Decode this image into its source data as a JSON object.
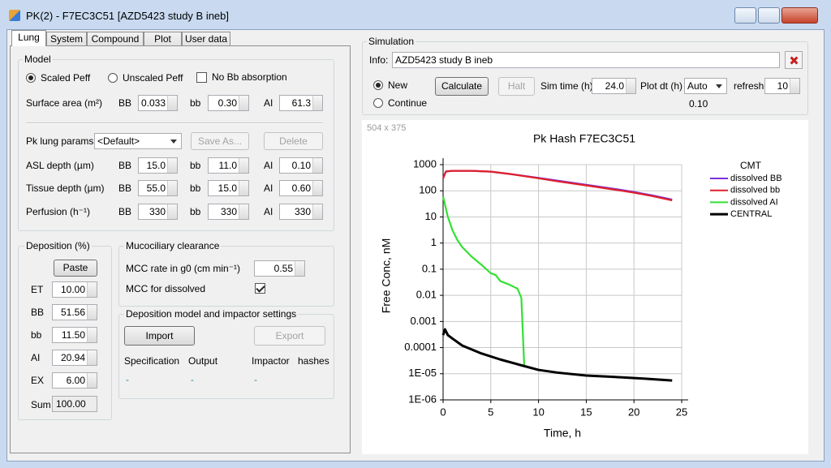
{
  "window": {
    "title": "PK(2) - F7EC3C51 [AZD5423 study B ineb]"
  },
  "tabs": [
    "Lung",
    "System",
    "Compound",
    "Plot",
    "User data"
  ],
  "model": {
    "title": "Model",
    "options": [
      {
        "label": "Scaled Peff",
        "checked": true
      },
      {
        "label": "Unscaled Peff",
        "checked": false
      }
    ],
    "no_bb_absorption": {
      "label": "No Bb absorption",
      "checked": false
    },
    "surface_area": {
      "label": "Surface area (m²)",
      "fields": [
        {
          "label": "BB",
          "value": "0.033"
        },
        {
          "label": "bb",
          "value": "0.30"
        },
        {
          "label": "AI",
          "value": "61.3"
        }
      ]
    },
    "pk_lung_params": {
      "label": "Pk lung params",
      "selected": "<Default>",
      "save_as": "Save As...",
      "delete": "Delete"
    },
    "rows": [
      {
        "label": "ASL depth (µm)",
        "fields": [
          {
            "label": "BB",
            "value": "15.0"
          },
          {
            "label": "bb",
            "value": "11.0"
          },
          {
            "label": "AI",
            "value": "0.10"
          }
        ]
      },
      {
        "label": "Tissue depth (µm)",
        "fields": [
          {
            "label": "BB",
            "value": "55.0"
          },
          {
            "label": "bb",
            "value": "15.0"
          },
          {
            "label": "AI",
            "value": "0.60"
          }
        ]
      },
      {
        "label": "Perfusion (h⁻¹)",
        "fields": [
          {
            "label": "BB",
            "value": "330"
          },
          {
            "label": "bb",
            "value": "330"
          },
          {
            "label": "AI",
            "value": "330"
          }
        ]
      }
    ]
  },
  "deposition": {
    "title": "Deposition (%)",
    "paste": "Paste",
    "rows": [
      {
        "label": "ET",
        "value": "10.00"
      },
      {
        "label": "BB",
        "value": "51.56"
      },
      {
        "label": "bb",
        "value": "11.50"
      },
      {
        "label": "AI",
        "value": "20.94"
      },
      {
        "label": "EX",
        "value": "6.00"
      }
    ],
    "sum": {
      "label": "Sum",
      "value": "100.00"
    }
  },
  "mcc": {
    "title": "Mucociliary clearance",
    "rate": {
      "label": "MCC rate in g0 (cm min⁻¹)",
      "value": "0.55"
    },
    "dissolved": {
      "label": "MCC for dissolved",
      "checked": true
    }
  },
  "impactor": {
    "title": "Deposition model and impactor settings",
    "import": "Import",
    "export": "Export",
    "headers": [
      "Specification",
      "Output",
      "Impactor",
      "hashes"
    ],
    "values": [
      "-",
      "-",
      "-"
    ]
  },
  "simulation": {
    "title": "Simulation",
    "info_label": "Info:",
    "info": "AZD5423 study B ineb",
    "modes": [
      {
        "label": "New",
        "checked": true
      },
      {
        "label": "Continue",
        "checked": false
      }
    ],
    "calculate": "Calculate",
    "halt": "Halt",
    "sim_time": {
      "label": "Sim time (h)",
      "value": "24.0"
    },
    "plot_dt": {
      "label": "Plot dt (h)",
      "value": "Auto",
      "actual": "0.10"
    },
    "refresh": {
      "label": "refresh",
      "value": "10"
    }
  },
  "chart_panel": {
    "size_label": "504 x 375"
  },
  "chart_data": {
    "type": "line",
    "title": "Pk Hash F7EC3C51",
    "x_label": "Time, h",
    "y_label": "Free Conc, nM",
    "xlim": [
      0,
      25
    ],
    "xticks": [
      0,
      5,
      10,
      15,
      20,
      25
    ],
    "ylim": [
      1e-06,
      1000
    ],
    "yscale": "log",
    "yticks": [
      1000,
      100,
      10,
      1,
      0.1,
      0.01,
      0.001,
      0.0001,
      {
        "value": 1e-05,
        "label": "1E-05"
      },
      {
        "value": 1e-06,
        "label": "1E-06"
      }
    ],
    "grid": true,
    "legend_title": "CMT",
    "legend_position": "right",
    "series": [
      {
        "name": "dissolved BB",
        "color": "#7a2fe0",
        "x": [
          0,
          0.3,
          1,
          3,
          5,
          7,
          10,
          12,
          15,
          18,
          20,
          22,
          24
        ],
        "values": [
          300,
          550,
          580,
          580,
          540,
          440,
          310,
          245,
          170,
          118,
          90,
          66,
          46
        ]
      },
      {
        "name": "dissolved bb",
        "color": "#e0202a",
        "x": [
          0,
          0.3,
          1,
          3,
          5,
          7,
          10,
          12,
          15,
          18,
          20,
          22,
          24
        ],
        "values": [
          300,
          550,
          580,
          580,
          540,
          440,
          300,
          230,
          160,
          110,
          85,
          62,
          43
        ]
      },
      {
        "name": "dissolved AI",
        "color": "#33e033",
        "x": [
          0,
          0.5,
          1,
          1.5,
          2,
          3,
          4,
          5,
          5.5,
          6,
          7,
          7.8,
          8.2,
          8.5
        ],
        "values": [
          60,
          10,
          3,
          1.3,
          0.7,
          0.3,
          0.15,
          0.07,
          0.06,
          0.035,
          0.025,
          0.018,
          0.008,
          2e-05
        ]
      },
      {
        "name": "CENTRAL",
        "color": "#000000",
        "x": [
          0,
          0.2,
          0.5,
          1,
          2,
          4,
          6,
          8,
          10,
          12,
          15,
          18,
          21,
          24
        ],
        "values": [
          0.0003,
          0.0005,
          0.0003,
          0.00022,
          0.00012,
          6e-05,
          3.5e-05,
          2.2e-05,
          1.4e-05,
          1.1e-05,
          8.5e-06,
          7.5e-06,
          6.5e-06,
          5.5e-06
        ]
      }
    ]
  }
}
